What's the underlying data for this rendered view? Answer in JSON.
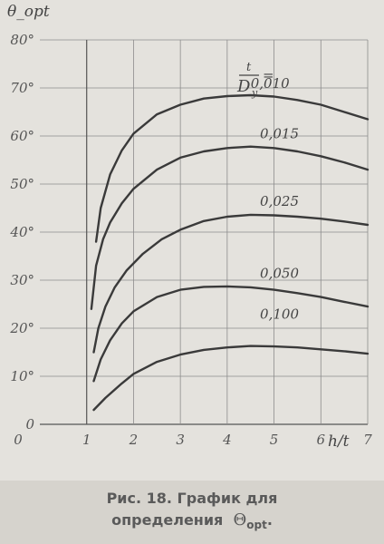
{
  "caption": {
    "line1": "Рис. 18. График для",
    "line2_text": "определения",
    "line2_symbol": "Θ",
    "line2_sub": "opt",
    "line2_end": "."
  },
  "chart_data": {
    "type": "line",
    "title": "",
    "xlabel": "h/t",
    "ylabel": "θ_opt",
    "xlim": [
      0,
      7
    ],
    "ylim": [
      0,
      80
    ],
    "grid": true,
    "x_ticks": [
      "0",
      "1",
      "2",
      "3",
      "4",
      "5",
      "6",
      "7"
    ],
    "y_ticks": [
      "0",
      "10°",
      "20°",
      "30°",
      "40°",
      "50°",
      "60°",
      "70°",
      "80°"
    ],
    "legend_key": {
      "numerator": "t",
      "denominator": "D",
      "denominator_sub": "y",
      "separator": "="
    },
    "series": [
      {
        "name": "0,010",
        "points": [
          [
            1.2,
            38
          ],
          [
            1.3,
            45
          ],
          [
            1.5,
            52
          ],
          [
            1.75,
            57
          ],
          [
            2,
            60.5
          ],
          [
            2.5,
            64.5
          ],
          [
            3,
            66.5
          ],
          [
            3.5,
            67.8
          ],
          [
            4,
            68.3
          ],
          [
            4.5,
            68.5
          ],
          [
            5,
            68.2
          ],
          [
            5.5,
            67.5
          ],
          [
            6,
            66.5
          ],
          [
            6.5,
            65
          ],
          [
            7,
            63.5
          ]
        ]
      },
      {
        "name": "0,015",
        "points": [
          [
            1.1,
            24
          ],
          [
            1.2,
            33
          ],
          [
            1.35,
            38.5
          ],
          [
            1.5,
            42
          ],
          [
            1.75,
            46
          ],
          [
            2,
            49
          ],
          [
            2.5,
            53
          ],
          [
            3,
            55.5
          ],
          [
            3.5,
            56.8
          ],
          [
            4,
            57.5
          ],
          [
            4.5,
            57.8
          ],
          [
            5,
            57.5
          ],
          [
            5.5,
            56.8
          ],
          [
            6,
            55.8
          ],
          [
            6.5,
            54.5
          ],
          [
            7,
            53
          ]
        ]
      },
      {
        "name": "0,025",
        "points": [
          [
            1.15,
            15
          ],
          [
            1.25,
            20
          ],
          [
            1.4,
            24.5
          ],
          [
            1.6,
            28.5
          ],
          [
            1.85,
            32
          ],
          [
            2.2,
            35.5
          ],
          [
            2.6,
            38.5
          ],
          [
            3,
            40.5
          ],
          [
            3.5,
            42.3
          ],
          [
            4,
            43.2
          ],
          [
            4.5,
            43.6
          ],
          [
            5,
            43.5
          ],
          [
            5.5,
            43.2
          ],
          [
            6,
            42.8
          ],
          [
            6.5,
            42.2
          ],
          [
            7,
            41.5
          ]
        ]
      },
      {
        "name": "0,050",
        "points": [
          [
            1.15,
            9
          ],
          [
            1.3,
            13.5
          ],
          [
            1.5,
            17.5
          ],
          [
            1.75,
            21
          ],
          [
            2,
            23.5
          ],
          [
            2.5,
            26.5
          ],
          [
            3,
            28
          ],
          [
            3.5,
            28.6
          ],
          [
            4,
            28.7
          ],
          [
            4.5,
            28.5
          ],
          [
            5,
            28
          ],
          [
            5.5,
            27.3
          ],
          [
            6,
            26.5
          ],
          [
            6.5,
            25.5
          ],
          [
            7,
            24.5
          ]
        ]
      },
      {
        "name": "0,100",
        "points": [
          [
            1.15,
            3
          ],
          [
            1.4,
            5.5
          ],
          [
            1.75,
            8.5
          ],
          [
            2,
            10.5
          ],
          [
            2.5,
            13
          ],
          [
            3,
            14.5
          ],
          [
            3.5,
            15.5
          ],
          [
            4,
            16
          ],
          [
            4.5,
            16.3
          ],
          [
            5,
            16.2
          ],
          [
            5.5,
            16
          ],
          [
            6,
            15.6
          ],
          [
            6.5,
            15.2
          ],
          [
            7,
            14.7
          ]
        ]
      }
    ]
  }
}
